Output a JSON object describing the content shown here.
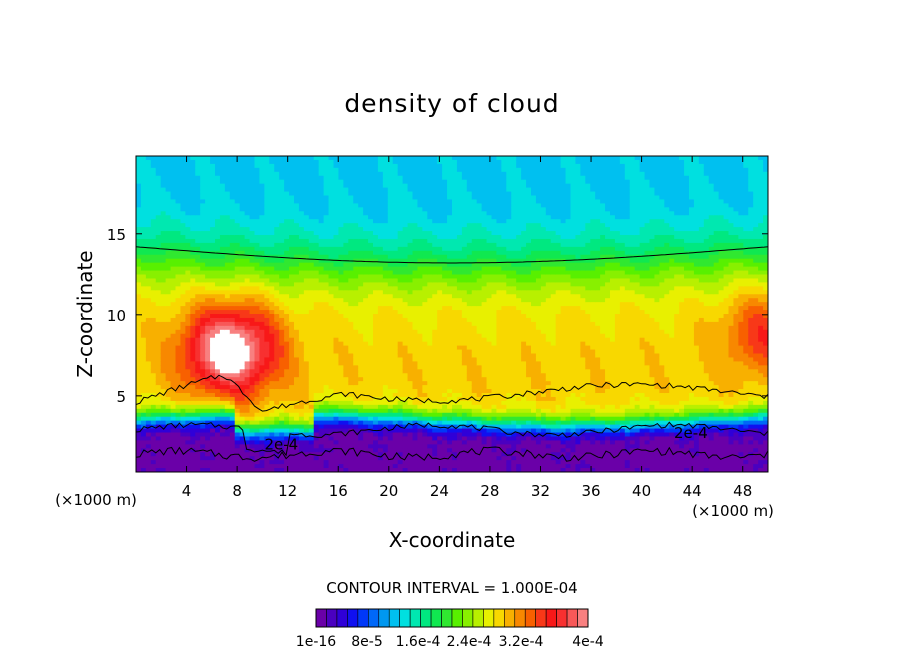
{
  "chart_data": {
    "type": "heatmap",
    "title": "density of cloud",
    "xlabel": "X-coordinate",
    "ylabel": "Z-coordinate",
    "x_unit": "(×1000 m)",
    "xlim": [
      0,
      50
    ],
    "ylim": [
      0.3,
      19.8
    ],
    "x_ticks": [
      4,
      8,
      12,
      16,
      20,
      24,
      28,
      32,
      36,
      40,
      44,
      48
    ],
    "y_ticks": [
      5,
      10,
      15
    ],
    "contour_interval": "CONTOUR INTERVAL = 1.000E-04",
    "contour_labels": [
      {
        "text": "2e-4",
        "x": 11.5,
        "z": 2.0
      },
      {
        "text": "2e-4",
        "x": 43.9,
        "z": 2.7
      }
    ],
    "colorbar": {
      "colors": [
        "#6a00a8",
        "#4a00c0",
        "#2f00d8",
        "#1010f0",
        "#0038f8",
        "#0068f8",
        "#0098f0",
        "#00c0f0",
        "#00e0e0",
        "#00e8b0",
        "#00e880",
        "#10e850",
        "#30e830",
        "#58f000",
        "#88f000",
        "#b8f000",
        "#e8f000",
        "#f8d800",
        "#f8b000",
        "#f88800",
        "#f86000",
        "#f83818",
        "#f81818",
        "#f83030",
        "#f85858",
        "#f88080"
      ],
      "tick_labels": [
        "1e-16",
        "8e-5",
        "1.6e-4",
        "2.4e-4",
        "3.2e-4",
        "4e-4"
      ]
    },
    "field": {
      "description_units": "cloud density",
      "top_layer_value": 0.00013,
      "core_center": {
        "x": 7.5,
        "z": 7.8
      },
      "core_value": 0.00041,
      "right_core_center": {
        "x": 49.5,
        "z": 8.8
      }
    }
  }
}
